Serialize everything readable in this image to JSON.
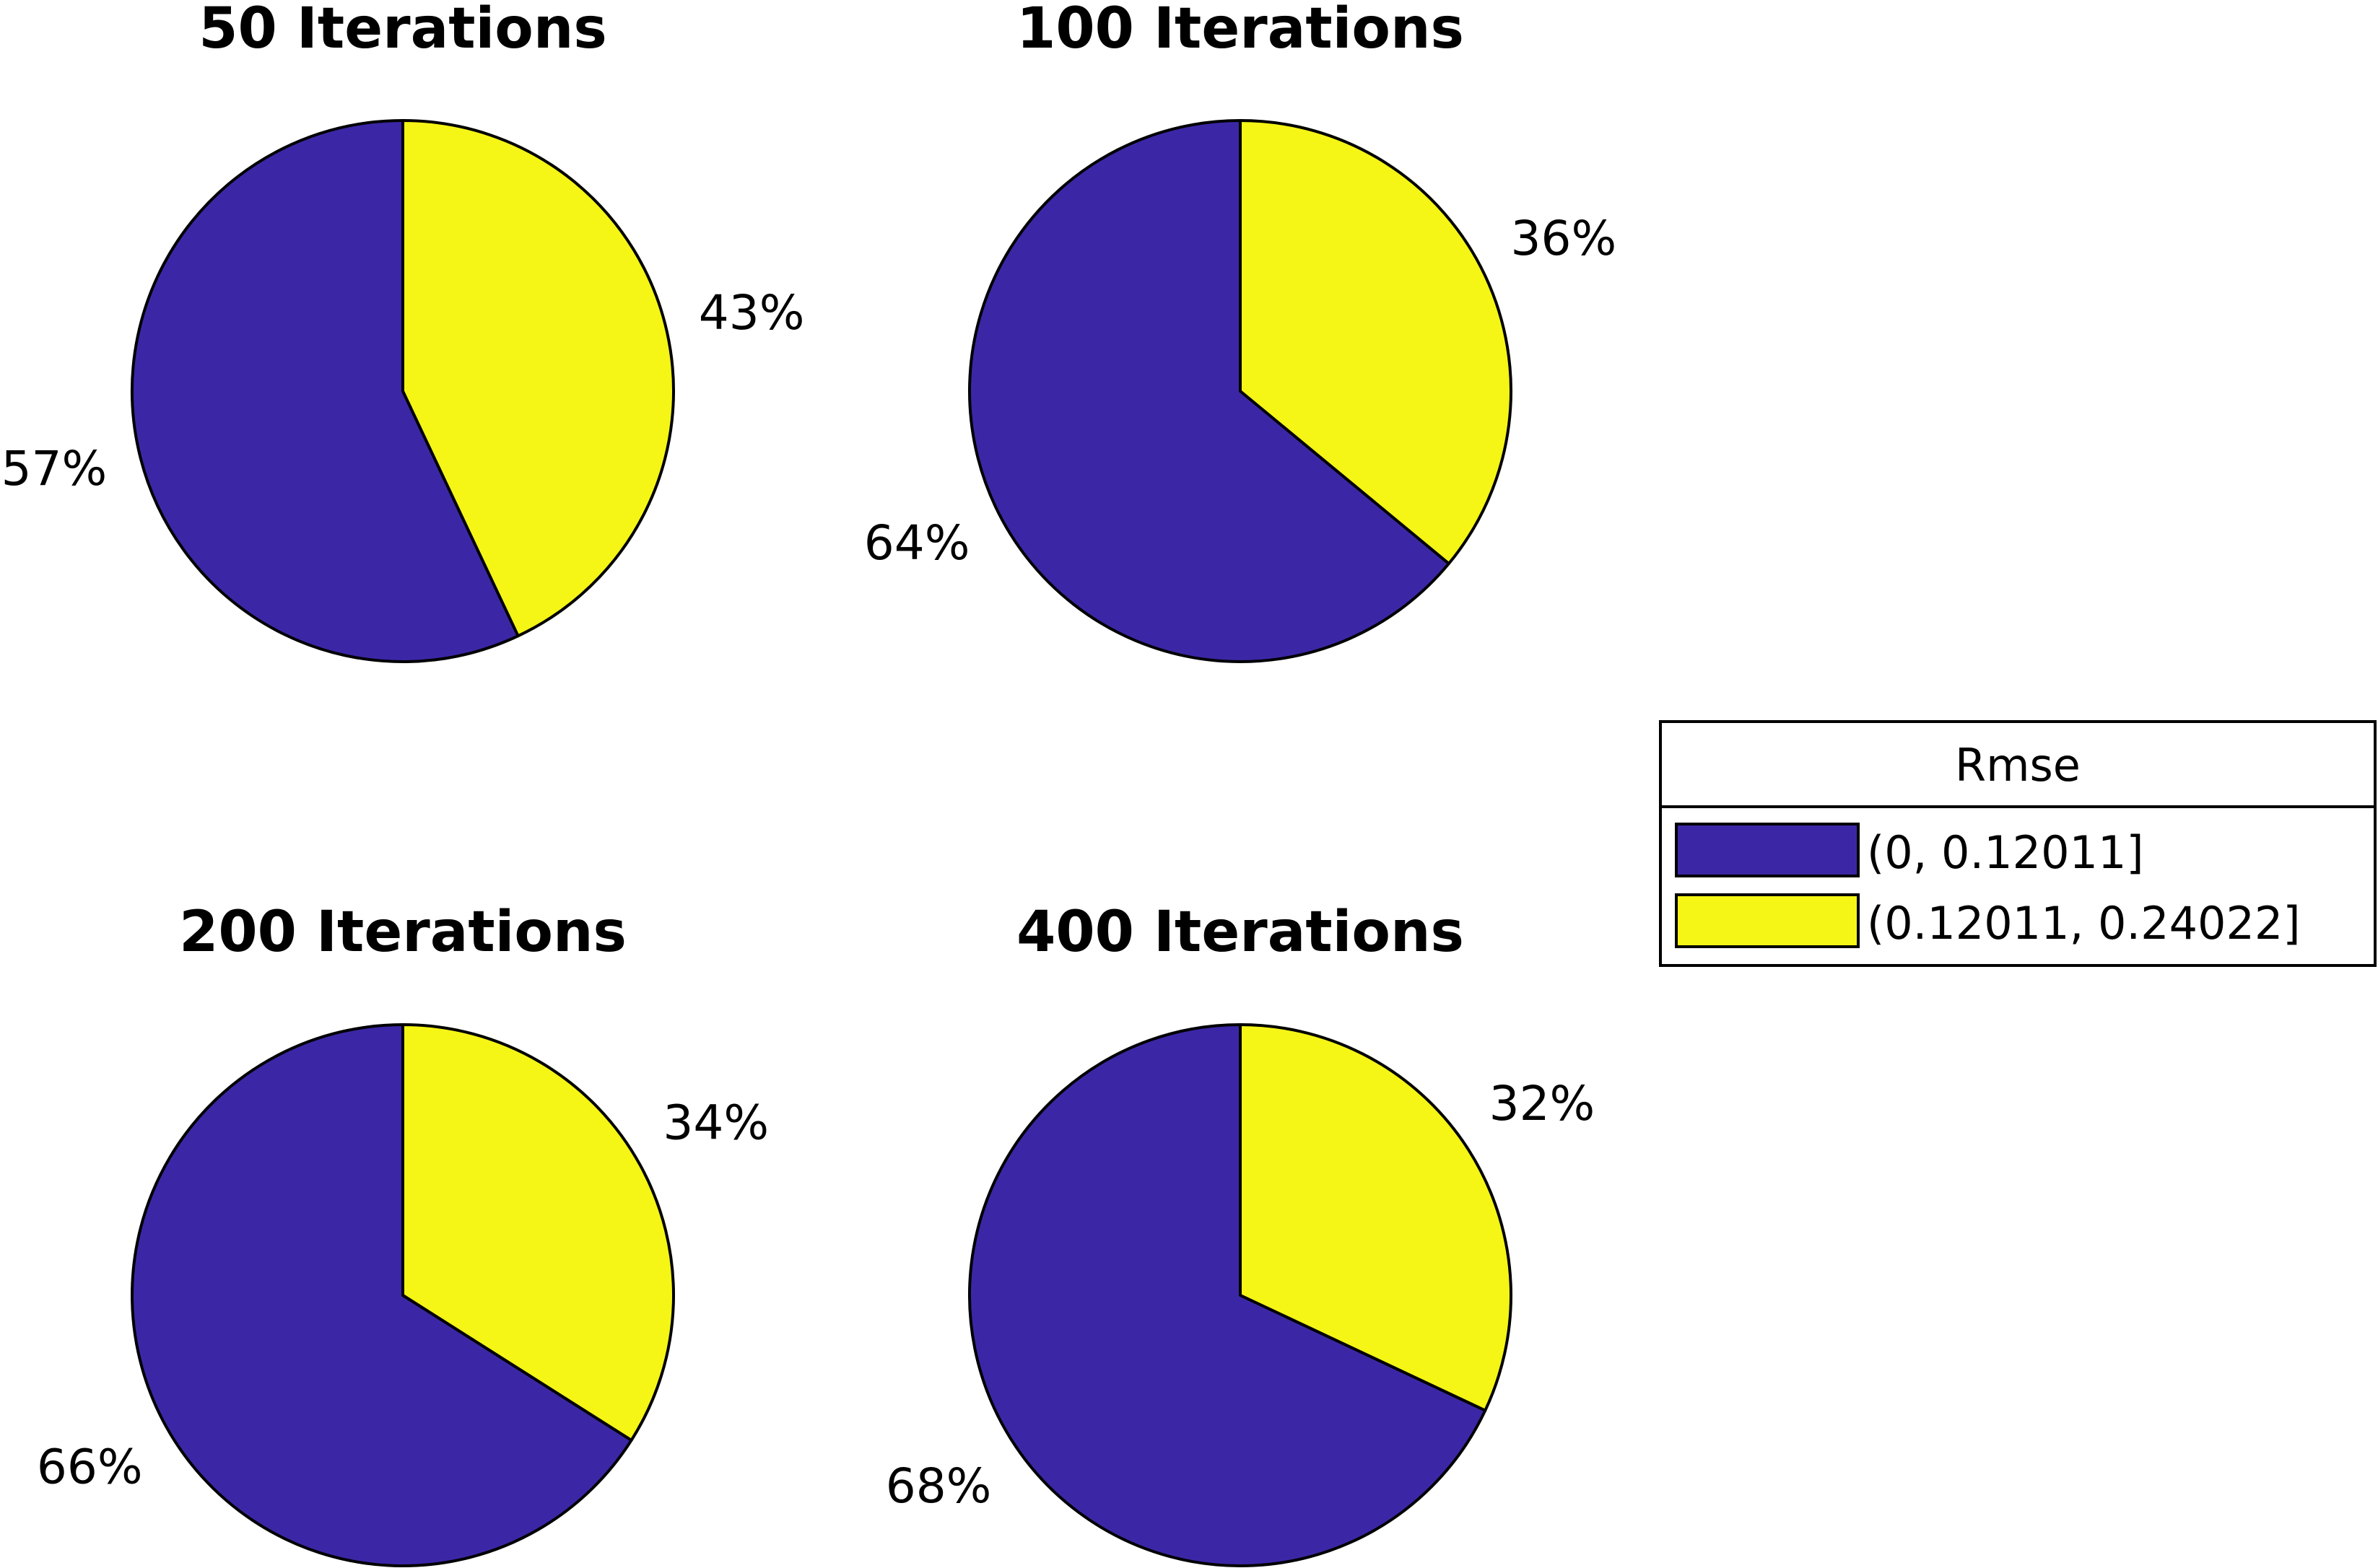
{
  "colors": {
    "slice_1": "#3b27a6",
    "slice_2": "#f5f516",
    "outline": "#000000",
    "background": "#ffffff"
  },
  "legend": {
    "title": "Rmse",
    "entries": [
      "(0, 0.12011]",
      "(0.12011, 0.24022]"
    ],
    "placement": "right"
  },
  "chart_data": [
    {
      "type": "pie",
      "title": "50 Iterations",
      "categories": [
        "(0, 0.12011]",
        "(0.12011, 0.24022]"
      ],
      "values": [
        57,
        43
      ],
      "labels": [
        "57%",
        "43%"
      ]
    },
    {
      "type": "pie",
      "title": "100 Iterations",
      "categories": [
        "(0, 0.12011]",
        "(0.12011, 0.24022]"
      ],
      "values": [
        64,
        36
      ],
      "labels": [
        "64%",
        "36%"
      ]
    },
    {
      "type": "pie",
      "title": "200 Iterations",
      "categories": [
        "(0, 0.12011]",
        "(0.12011, 0.24022]"
      ],
      "values": [
        66,
        34
      ],
      "labels": [
        "66%",
        "34%"
      ]
    },
    {
      "type": "pie",
      "title": "400 Iterations",
      "categories": [
        "(0, 0.12011]",
        "(0.12011, 0.24022]"
      ],
      "values": [
        68,
        32
      ],
      "labels": [
        "68%",
        "32%"
      ]
    }
  ]
}
